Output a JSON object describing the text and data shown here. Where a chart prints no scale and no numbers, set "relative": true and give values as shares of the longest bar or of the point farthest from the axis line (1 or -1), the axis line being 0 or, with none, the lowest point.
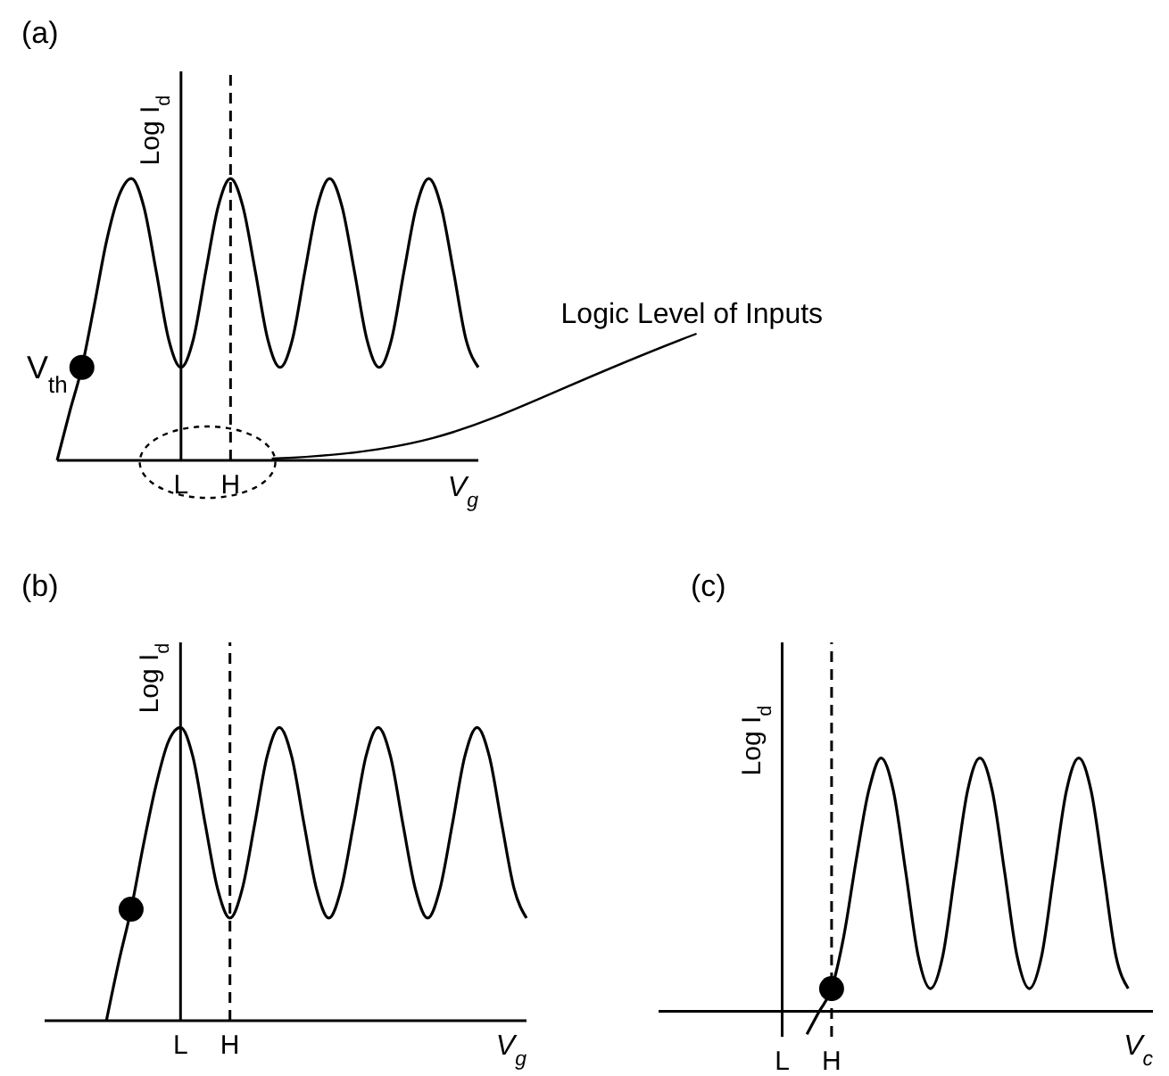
{
  "chart_data": [
    {
      "type": "line",
      "title": "(a)",
      "ylabel": "Log I$_{d}$",
      "xlabel": "V$_{g}$",
      "relative": true,
      "categories": [
        null,
        null,
        null,
        null,
        null,
        null,
        null,
        null,
        null,
        null,
        "L",
        null,
        null,
        null,
        "H",
        null,
        null,
        null,
        null,
        null,
        null,
        null,
        null,
        null,
        null,
        null,
        null,
        null,
        null,
        null,
        null,
        null,
        null,
        null,
        null
      ],
      "series": [
        {
          "type": "line",
          "color": "#000000",
          "marker": "none",
          "values": [
            0,
            0.17,
            0.33,
            0.55,
            0.78,
            0.94,
            1,
            0.9,
            0.67,
            0.43,
            0.33,
            0.43,
            0.67,
            0.9,
            1,
            0.9,
            0.67,
            0.43,
            0.33,
            0.43,
            0.67,
            0.9,
            1,
            0.9,
            0.67,
            0.43,
            0.33,
            0.43,
            0.67,
            0.9,
            1,
            0.9,
            0.67,
            0.43,
            0.33
          ]
        },
        {
          "type": "scatter",
          "color": "#000000",
          "marker": "circle",
          "values": [
            null,
            null,
            0.33,
            null,
            null,
            null,
            null,
            null,
            null,
            null,
            null,
            null,
            null,
            null,
            null,
            null,
            null,
            null,
            null,
            null,
            null,
            null,
            null,
            null,
            null,
            null,
            null,
            null,
            null,
            null,
            null,
            null,
            null,
            null,
            null
          ]
        }
      ],
      "ref_lines": [
        {
          "axis": "x",
          "value": "L",
          "line_style": "solid"
        },
        {
          "axis": "x",
          "value": "H",
          "line_style": "dashed"
        }
      ],
      "annotations": [
        "V$_{th}$",
        "Logic Level of Inputs"
      ]
    },
    {
      "type": "line",
      "title": "(b)",
      "ylabel": "Log I$_{d}$",
      "xlabel": "V$_{g}$",
      "relative": true,
      "categories": [
        null,
        null,
        null,
        null,
        null,
        null,
        null,
        null,
        null,
        null,
        null,
        "L",
        null,
        null,
        null,
        "H",
        null,
        null,
        null,
        null,
        null,
        null,
        null,
        null,
        null,
        null,
        null,
        null,
        null,
        null,
        null,
        null,
        null,
        null,
        null,
        null,
        null,
        null,
        null,
        null
      ],
      "series": [
        {
          "type": "line",
          "color": "#000000",
          "marker": "none",
          "values": [
            null,
            null,
            null,
            null,
            null,
            0,
            0.2,
            0.38,
            0.6,
            0.8,
            0.95,
            1,
            0.9,
            0.67,
            0.45,
            0.35,
            0.45,
            0.67,
            0.9,
            1,
            0.9,
            0.67,
            0.45,
            0.35,
            0.45,
            0.67,
            0.9,
            1,
            0.9,
            0.67,
            0.45,
            0.35,
            0.45,
            0.67,
            0.9,
            1,
            0.9,
            0.67,
            0.45,
            0.35
          ]
        },
        {
          "type": "scatter",
          "color": "#000000",
          "marker": "circle",
          "values": [
            null,
            null,
            null,
            null,
            null,
            null,
            null,
            0.38,
            null,
            null,
            null,
            null,
            null,
            null,
            null,
            null,
            null,
            null,
            null,
            null,
            null,
            null,
            null,
            null,
            null,
            null,
            null,
            null,
            null,
            null,
            null,
            null,
            null,
            null,
            null,
            null,
            null,
            null,
            null,
            null
          ]
        }
      ],
      "ref_lines": [
        {
          "axis": "x",
          "value": "L",
          "line_style": "solid"
        },
        {
          "axis": "x",
          "value": "H",
          "line_style": "dashed"
        }
      ]
    },
    {
      "type": "line",
      "title": "(c)",
      "ylabel": "Log I$_{d}$",
      "xlabel": "V$_{c}$",
      "relative": true,
      "categories": [
        null,
        null,
        null,
        null,
        null,
        null,
        null,
        null,
        null,
        null,
        "L",
        null,
        null,
        null,
        "H",
        null,
        null,
        null,
        null,
        null,
        null,
        null,
        null,
        null,
        null,
        null,
        null,
        null,
        null,
        null,
        null,
        null,
        null,
        null,
        null,
        null,
        null,
        null,
        null,
        null,
        null
      ],
      "series": [
        {
          "type": "line",
          "color": "#000000",
          "marker": "none",
          "values": [
            null,
            null,
            null,
            null,
            null,
            null,
            null,
            null,
            null,
            null,
            null,
            null,
            -0.09,
            0,
            0.09,
            0.3,
            0.6,
            0.87,
            1,
            0.87,
            0.55,
            0.22,
            0.09,
            0.22,
            0.55,
            0.87,
            1,
            0.87,
            0.55,
            0.22,
            0.09,
            0.22,
            0.55,
            0.87,
            1,
            0.87,
            0.55,
            0.22,
            0.09,
            null,
            null
          ]
        },
        {
          "type": "scatter",
          "color": "#000000",
          "marker": "circle",
          "values": [
            null,
            null,
            null,
            null,
            null,
            null,
            null,
            null,
            null,
            null,
            null,
            null,
            null,
            null,
            0.09,
            null,
            null,
            null,
            null,
            null,
            null,
            null,
            null,
            null,
            null,
            null,
            null,
            null,
            null,
            null,
            null,
            null,
            null,
            null,
            null,
            null,
            null,
            null,
            null,
            null,
            null
          ]
        }
      ],
      "ref_lines": [
        {
          "axis": "x",
          "value": "L",
          "line_style": "solid"
        },
        {
          "axis": "x",
          "value": "H",
          "line_style": "dashed"
        }
      ]
    }
  ]
}
